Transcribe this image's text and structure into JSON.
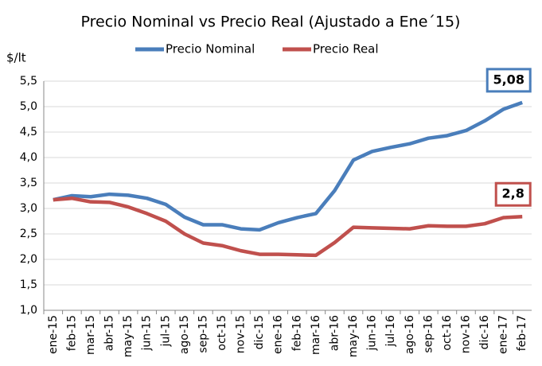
{
  "chart_data": {
    "type": "line",
    "title": "Precio Nominal vs Precio Real (Ajustado a Ene´15)",
    "y_label": "$/lt",
    "categories": [
      "ene-15",
      "feb-15",
      "mar-15",
      "abr-15",
      "may-15",
      "jun-15",
      "jul-15",
      "ago-15",
      "sep-15",
      "oct-15",
      "nov-15",
      "dic-15",
      "ene-16",
      "feb-16",
      "mar-16",
      "abr-16",
      "may-16",
      "jun-16",
      "jul-16",
      "ago-16",
      "sep-16",
      "oct-16",
      "nov-16",
      "dic-16",
      "ene-17",
      "feb-17"
    ],
    "series": [
      {
        "name": "Precio Nominal",
        "color": "#4a7ebb",
        "values": [
          3.17,
          3.25,
          3.23,
          3.28,
          3.26,
          3.2,
          3.08,
          2.83,
          2.68,
          2.68,
          2.6,
          2.58,
          2.72,
          2.82,
          2.9,
          3.35,
          3.95,
          4.12,
          4.2,
          4.27,
          4.38,
          4.43,
          4.53,
          4.72,
          4.95,
          5.08
        ],
        "value_labels": [
          null,
          null,
          null,
          null,
          null,
          null,
          null,
          null,
          null,
          null,
          null,
          null,
          null,
          null,
          null,
          null,
          null,
          null,
          null,
          null,
          null,
          null,
          null,
          null,
          null,
          "5,08"
        ]
      },
      {
        "name": "Precio Real",
        "color": "#c0504d",
        "values": [
          3.17,
          3.2,
          3.13,
          3.12,
          3.03,
          2.9,
          2.75,
          2.5,
          2.32,
          2.27,
          2.17,
          2.1,
          2.1,
          2.09,
          2.08,
          2.33,
          2.63,
          2.62,
          2.61,
          2.6,
          2.66,
          2.65,
          2.65,
          2.7,
          2.82,
          2.84
        ],
        "value_labels": [
          null,
          null,
          null,
          null,
          null,
          null,
          null,
          null,
          null,
          null,
          null,
          null,
          null,
          null,
          null,
          null,
          null,
          null,
          null,
          null,
          null,
          null,
          null,
          null,
          null,
          "2,8"
        ]
      }
    ],
    "ylim": [
      1,
      5.5
    ],
    "yticks": [
      {
        "value": 1,
        "label": "1,0"
      },
      {
        "value": 1.5,
        "label": "1,5"
      },
      {
        "value": 2,
        "label": "2,0"
      },
      {
        "value": 2.5,
        "label": "2,5"
      },
      {
        "value": 3,
        "label": "3,0"
      },
      {
        "value": 3.5,
        "label": "3,5"
      },
      {
        "value": 4,
        "label": "4,0"
      },
      {
        "value": 4.5,
        "label": "4,5"
      },
      {
        "value": 5,
        "label": "5,0"
      },
      {
        "value": 5.5,
        "label": "5,5"
      }
    ],
    "grid": true
  }
}
